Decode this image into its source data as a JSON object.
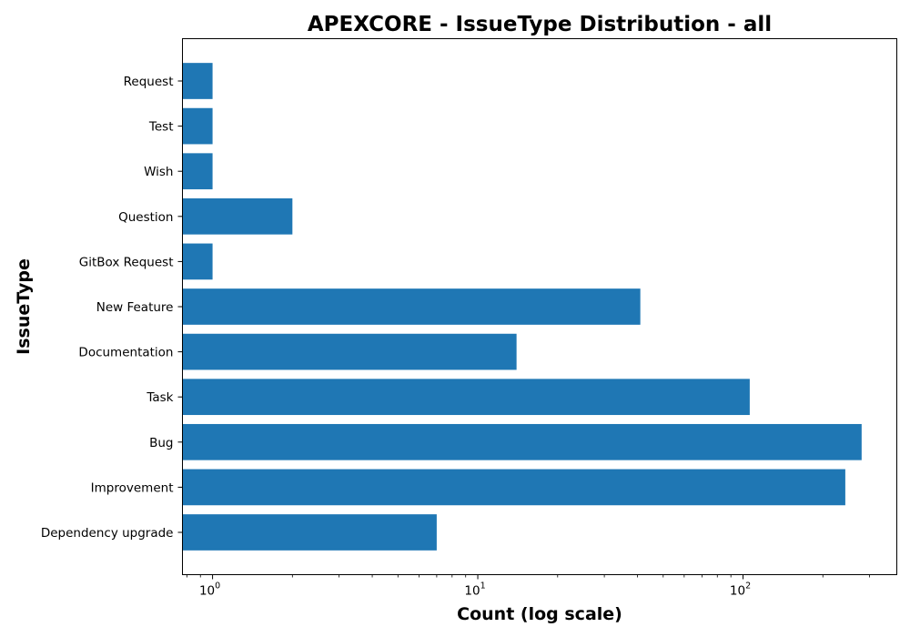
{
  "chart_data": {
    "type": "bar",
    "orientation": "horizontal",
    "title": "APEXCORE - IssueType Distribution - all",
    "xlabel": "Count (log scale)",
    "ylabel": "IssueType",
    "xscale": "log",
    "xlim": [
      0.77,
      380
    ],
    "x_ticks": [
      {
        "value": 1,
        "base": "10",
        "exp": "0"
      },
      {
        "value": 10,
        "base": "10",
        "exp": "1"
      },
      {
        "value": 100,
        "base": "10",
        "exp": "2"
      }
    ],
    "categories": [
      "Dependency upgrade",
      "Improvement",
      "Bug",
      "Task",
      "Documentation",
      "New Feature",
      "GitBox Request",
      "Question",
      "Wish",
      "Test",
      "Request"
    ],
    "values": [
      7,
      243,
      280,
      106,
      14,
      41,
      1,
      2,
      1,
      1,
      1
    ],
    "bar_color": "#1f77b4",
    "grid": false
  }
}
